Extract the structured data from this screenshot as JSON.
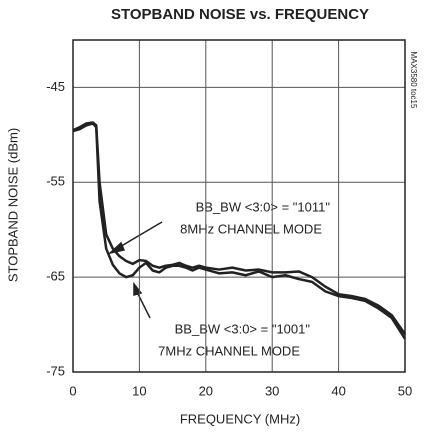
{
  "chart_data": {
    "type": "line",
    "title": "STOPBAND NOISE vs. FREQUENCY",
    "xlabel": "FREQUENCY (MHz)",
    "ylabel": "STOPBAND NOISE (dBm)",
    "side_label": "MAX3580 toc15",
    "annotations": [
      [
        "BB_BW <3:0> = \"1011\"",
        "8MHz CHANNEL MODE"
      ],
      [
        "BB_BW <3:0> = \"1001\"",
        "7MHz CHANNEL MODE"
      ]
    ],
    "x": [
      0,
      1,
      2,
      3,
      3.5,
      4,
      5,
      6,
      7,
      8,
      9,
      10,
      11,
      12,
      13,
      14,
      15,
      16,
      17,
      18,
      19,
      20,
      22,
      24,
      26,
      28,
      30,
      32,
      34,
      36,
      38,
      40,
      42,
      44,
      46,
      48,
      50
    ],
    "series": [
      {
        "color": "#222222",
        "values": [
          -49.5,
          -49.2,
          -48.8,
          -48.7,
          -49,
          -55,
          -60.5,
          -62,
          -62.8,
          -63.3,
          -63.6,
          -63.2,
          -63.3,
          -63.8,
          -64,
          -63.8,
          -63.7,
          -63.5,
          -63.8,
          -64,
          -63.8,
          -64,
          -64.2,
          -64,
          -64.3,
          -64.2,
          -64.5,
          -64.5,
          -64.4,
          -65,
          -66,
          -66.8,
          -67,
          -67.3,
          -68,
          -69,
          -71
        ]
      },
      {
        "color": "#222222",
        "values": [
          -49.6,
          -49.4,
          -49,
          -48.8,
          -49.2,
          -57,
          -62,
          -63.7,
          -64.6,
          -65,
          -64.8,
          -64,
          -63.5,
          -64.3,
          -64.5,
          -64,
          -63.8,
          -63.8,
          -64,
          -64.3,
          -64,
          -64.2,
          -64.6,
          -64.5,
          -64.8,
          -64.4,
          -65,
          -64.8,
          -65.2,
          -65.5,
          -66.5,
          -67,
          -67.2,
          -67.5,
          -68.3,
          -69.3,
          -71.5
        ]
      }
    ],
    "xlim": [
      0,
      50
    ],
    "xticks": [
      0,
      10,
      20,
      30,
      40,
      50
    ],
    "ylim": [
      -75,
      -40
    ],
    "yticks": [
      -75,
      -65,
      -55,
      -45
    ],
    "grid": true
  }
}
